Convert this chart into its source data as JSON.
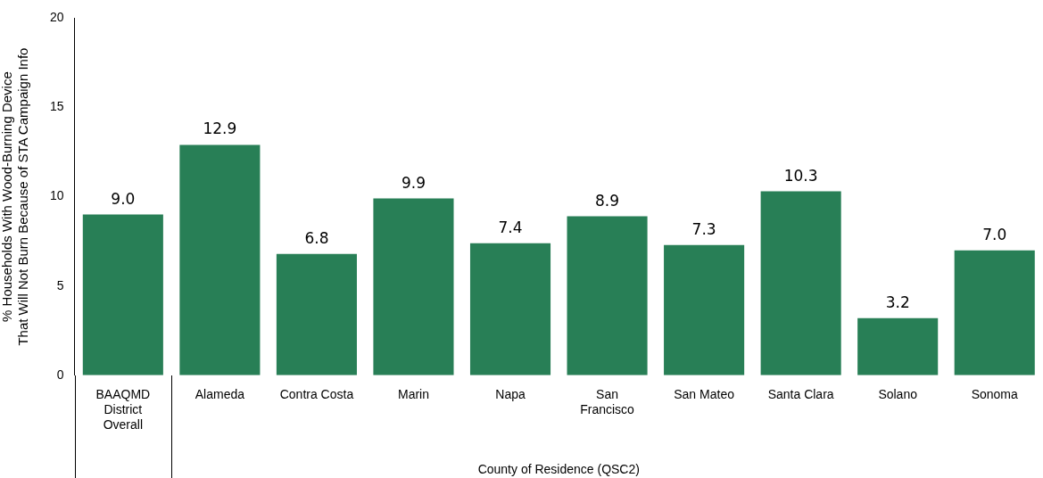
{
  "chart_data": {
    "type": "bar",
    "xlabel": "County of Residence (QSC2)",
    "ylabel": "% Households With Wood-Burning Device\nThat Will Not Burn Because of STA Campaign Info",
    "categories": [
      "BAAQMD District Overall",
      "Alameda",
      "Contra Costa",
      "Marin",
      "Napa",
      "San Francisco",
      "San Mateo",
      "Santa Clara",
      "Solano",
      "Sonoma"
    ],
    "values": [
      9.0,
      12.9,
      6.8,
      9.9,
      7.4,
      8.9,
      7.3,
      10.3,
      3.2,
      7.0
    ],
    "value_labels": [
      "9.0",
      "12.9",
      "6.8",
      "9.9",
      "7.4",
      "8.9",
      "7.3",
      "10.3",
      "3.2",
      "7.0"
    ],
    "color": "#287f56",
    "ylim": [
      0,
      20
    ],
    "yticks": [
      0,
      5,
      10,
      15,
      20
    ],
    "grid": false,
    "legend": false
  }
}
